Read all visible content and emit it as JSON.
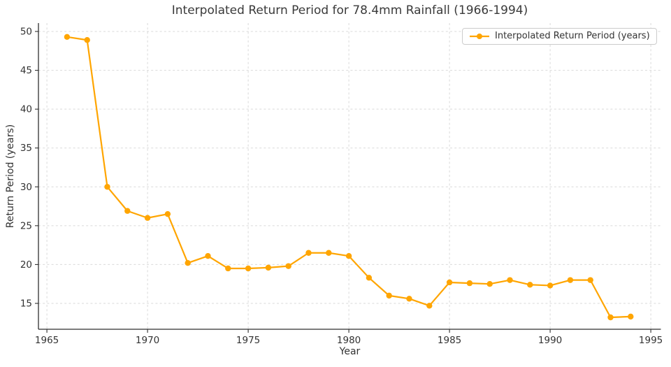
{
  "figure": {
    "background": "#ffffff"
  },
  "legend": {
    "label": "Interpolated Return Period (years)"
  },
  "chart_data": {
    "type": "line",
    "title": "Interpolated Return Period for 78.4mm Rainfall (1966-1994)",
    "xlabel": "Year",
    "ylabel": "Return Period (years)",
    "legend_label": "Interpolated Return Period (years)",
    "legend_position": "upper right",
    "grid": true,
    "grid_style": "dashed",
    "marker": "circle",
    "line_color": "#FFA500",
    "grid_color": "#d9d9d9",
    "spine_color": "#2f2f2f",
    "text_color": "#333333",
    "x": [
      1966,
      1967,
      1968,
      1969,
      1970,
      1971,
      1972,
      1973,
      1974,
      1975,
      1976,
      1977,
      1978,
      1979,
      1980,
      1981,
      1982,
      1983,
      1984,
      1985,
      1986,
      1987,
      1988,
      1989,
      1990,
      1991,
      1992,
      1993,
      1994
    ],
    "y": [
      49.3,
      48.9,
      30.0,
      26.9,
      26.0,
      26.5,
      20.2,
      21.1,
      19.5,
      19.5,
      19.6,
      19.8,
      21.5,
      21.5,
      21.1,
      18.3,
      16.0,
      15.6,
      14.7,
      17.7,
      17.6,
      17.5,
      18.0,
      17.4,
      17.3,
      18.0,
      18.0,
      13.2,
      13.3
    ],
    "xticks": [
      1965,
      1970,
      1975,
      1980,
      1985,
      1990,
      1995
    ],
    "yticks": [
      15,
      20,
      25,
      30,
      35,
      40,
      45,
      50
    ],
    "xlim": [
      1964.58,
      1995.5
    ],
    "ylim": [
      11.67,
      51.08
    ]
  }
}
